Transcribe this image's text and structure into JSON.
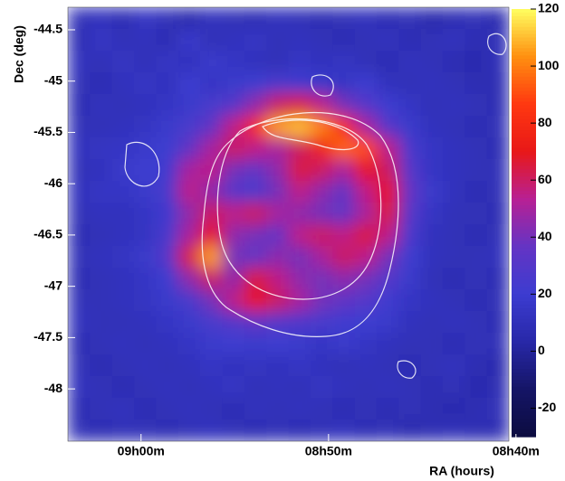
{
  "chart_data": {
    "type": "heatmap",
    "xlabel": "RA (hours)",
    "ylabel": "Dec (deg)",
    "xlim": [
      9.065,
      8.673
    ],
    "ylim": [
      -48.51,
      -44.28
    ],
    "xticks": [
      {
        "value": 9.0,
        "label": "09h00m"
      },
      {
        "value": 8.8333,
        "label": "08h50m"
      },
      {
        "value": 8.6667,
        "label": "08h40m"
      }
    ],
    "yticks": [
      -44.5,
      -45,
      -45.5,
      -46,
      -46.5,
      -47,
      -47.5,
      -48
    ],
    "zlim": [
      -30,
      120
    ],
    "zticks": [
      120,
      100,
      80,
      60,
      40,
      20,
      0,
      -20
    ],
    "colormap": [
      "#0c0c40",
      "#151566",
      "#2828a8",
      "#3c3cd0",
      "#6434c4",
      "#b82094",
      "#e81818",
      "#ff3810",
      "#ff9010",
      "#ffff60"
    ],
    "z": [
      [
        10,
        12,
        8,
        15,
        10,
        5,
        12,
        10,
        8,
        12,
        10,
        8,
        10,
        12,
        8,
        10,
        5,
        8,
        10,
        6
      ],
      [
        8,
        15,
        10,
        12,
        8,
        18,
        10,
        12,
        15,
        10,
        12,
        10,
        8,
        10,
        12,
        8,
        10,
        12,
        8,
        10
      ],
      [
        12,
        10,
        14,
        10,
        15,
        12,
        18,
        15,
        12,
        10,
        15,
        12,
        14,
        10,
        8,
        12,
        10,
        8,
        6,
        10
      ],
      [
        10,
        8,
        12,
        15,
        12,
        20,
        15,
        18,
        20,
        25,
        22,
        18,
        15,
        20,
        12,
        10,
        12,
        10,
        8,
        8
      ],
      [
        8,
        12,
        10,
        12,
        15,
        18,
        25,
        30,
        45,
        60,
        65,
        55,
        40,
        30,
        20,
        15,
        10,
        12,
        10,
        8
      ],
      [
        10,
        10,
        12,
        14,
        18,
        25,
        35,
        55,
        80,
        105,
        110,
        100,
        80,
        50,
        30,
        18,
        12,
        10,
        8,
        10
      ],
      [
        12,
        14,
        15,
        18,
        20,
        35,
        50,
        60,
        55,
        50,
        60,
        75,
        95,
        90,
        55,
        25,
        15,
        12,
        10,
        8
      ],
      [
        10,
        12,
        18,
        20,
        22,
        50,
        55,
        40,
        35,
        45,
        65,
        60,
        50,
        70,
        60,
        30,
        15,
        12,
        10,
        10
      ],
      [
        12,
        15,
        15,
        18,
        25,
        55,
        45,
        30,
        25,
        40,
        55,
        45,
        35,
        55,
        70,
        35,
        18,
        12,
        8,
        10
      ],
      [
        10,
        12,
        12,
        15,
        22,
        45,
        60,
        55,
        60,
        50,
        45,
        40,
        35,
        50,
        65,
        30,
        15,
        10,
        10,
        8
      ],
      [
        8,
        10,
        12,
        14,
        25,
        50,
        70,
        45,
        40,
        35,
        55,
        60,
        55,
        65,
        55,
        25,
        12,
        10,
        8,
        10
      ],
      [
        10,
        12,
        14,
        18,
        30,
        65,
        105,
        40,
        35,
        45,
        40,
        50,
        60,
        55,
        40,
        20,
        12,
        10,
        10,
        12
      ],
      [
        8,
        10,
        12,
        15,
        20,
        45,
        60,
        45,
        65,
        55,
        45,
        40,
        45,
        40,
        30,
        18,
        10,
        8,
        10,
        8
      ],
      [
        10,
        10,
        12,
        14,
        18,
        25,
        40,
        55,
        70,
        60,
        50,
        40,
        35,
        30,
        22,
        15,
        12,
        10,
        8,
        10
      ],
      [
        12,
        10,
        10,
        12,
        15,
        18,
        25,
        30,
        35,
        30,
        28,
        25,
        22,
        20,
        18,
        12,
        10,
        12,
        10,
        8
      ],
      [
        8,
        10,
        12,
        10,
        12,
        15,
        18,
        20,
        18,
        20,
        18,
        15,
        18,
        15,
        12,
        10,
        10,
        8,
        10,
        10
      ],
      [
        10,
        8,
        10,
        12,
        10,
        12,
        15,
        12,
        14,
        12,
        15,
        12,
        10,
        12,
        10,
        8,
        10,
        12,
        8,
        6
      ],
      [
        12,
        10,
        8,
        10,
        12,
        10,
        12,
        15,
        10,
        12,
        10,
        14,
        12,
        10,
        12,
        10,
        8,
        10,
        6,
        8
      ],
      [
        8,
        10,
        12,
        8,
        10,
        12,
        10,
        8,
        12,
        10,
        12,
        10,
        8,
        10,
        8,
        10,
        8,
        6,
        8,
        10
      ],
      [
        10,
        8,
        10,
        10,
        8,
        10,
        12,
        10,
        8,
        10,
        8,
        10,
        12,
        8,
        10,
        6,
        8,
        10,
        8,
        8
      ]
    ]
  }
}
